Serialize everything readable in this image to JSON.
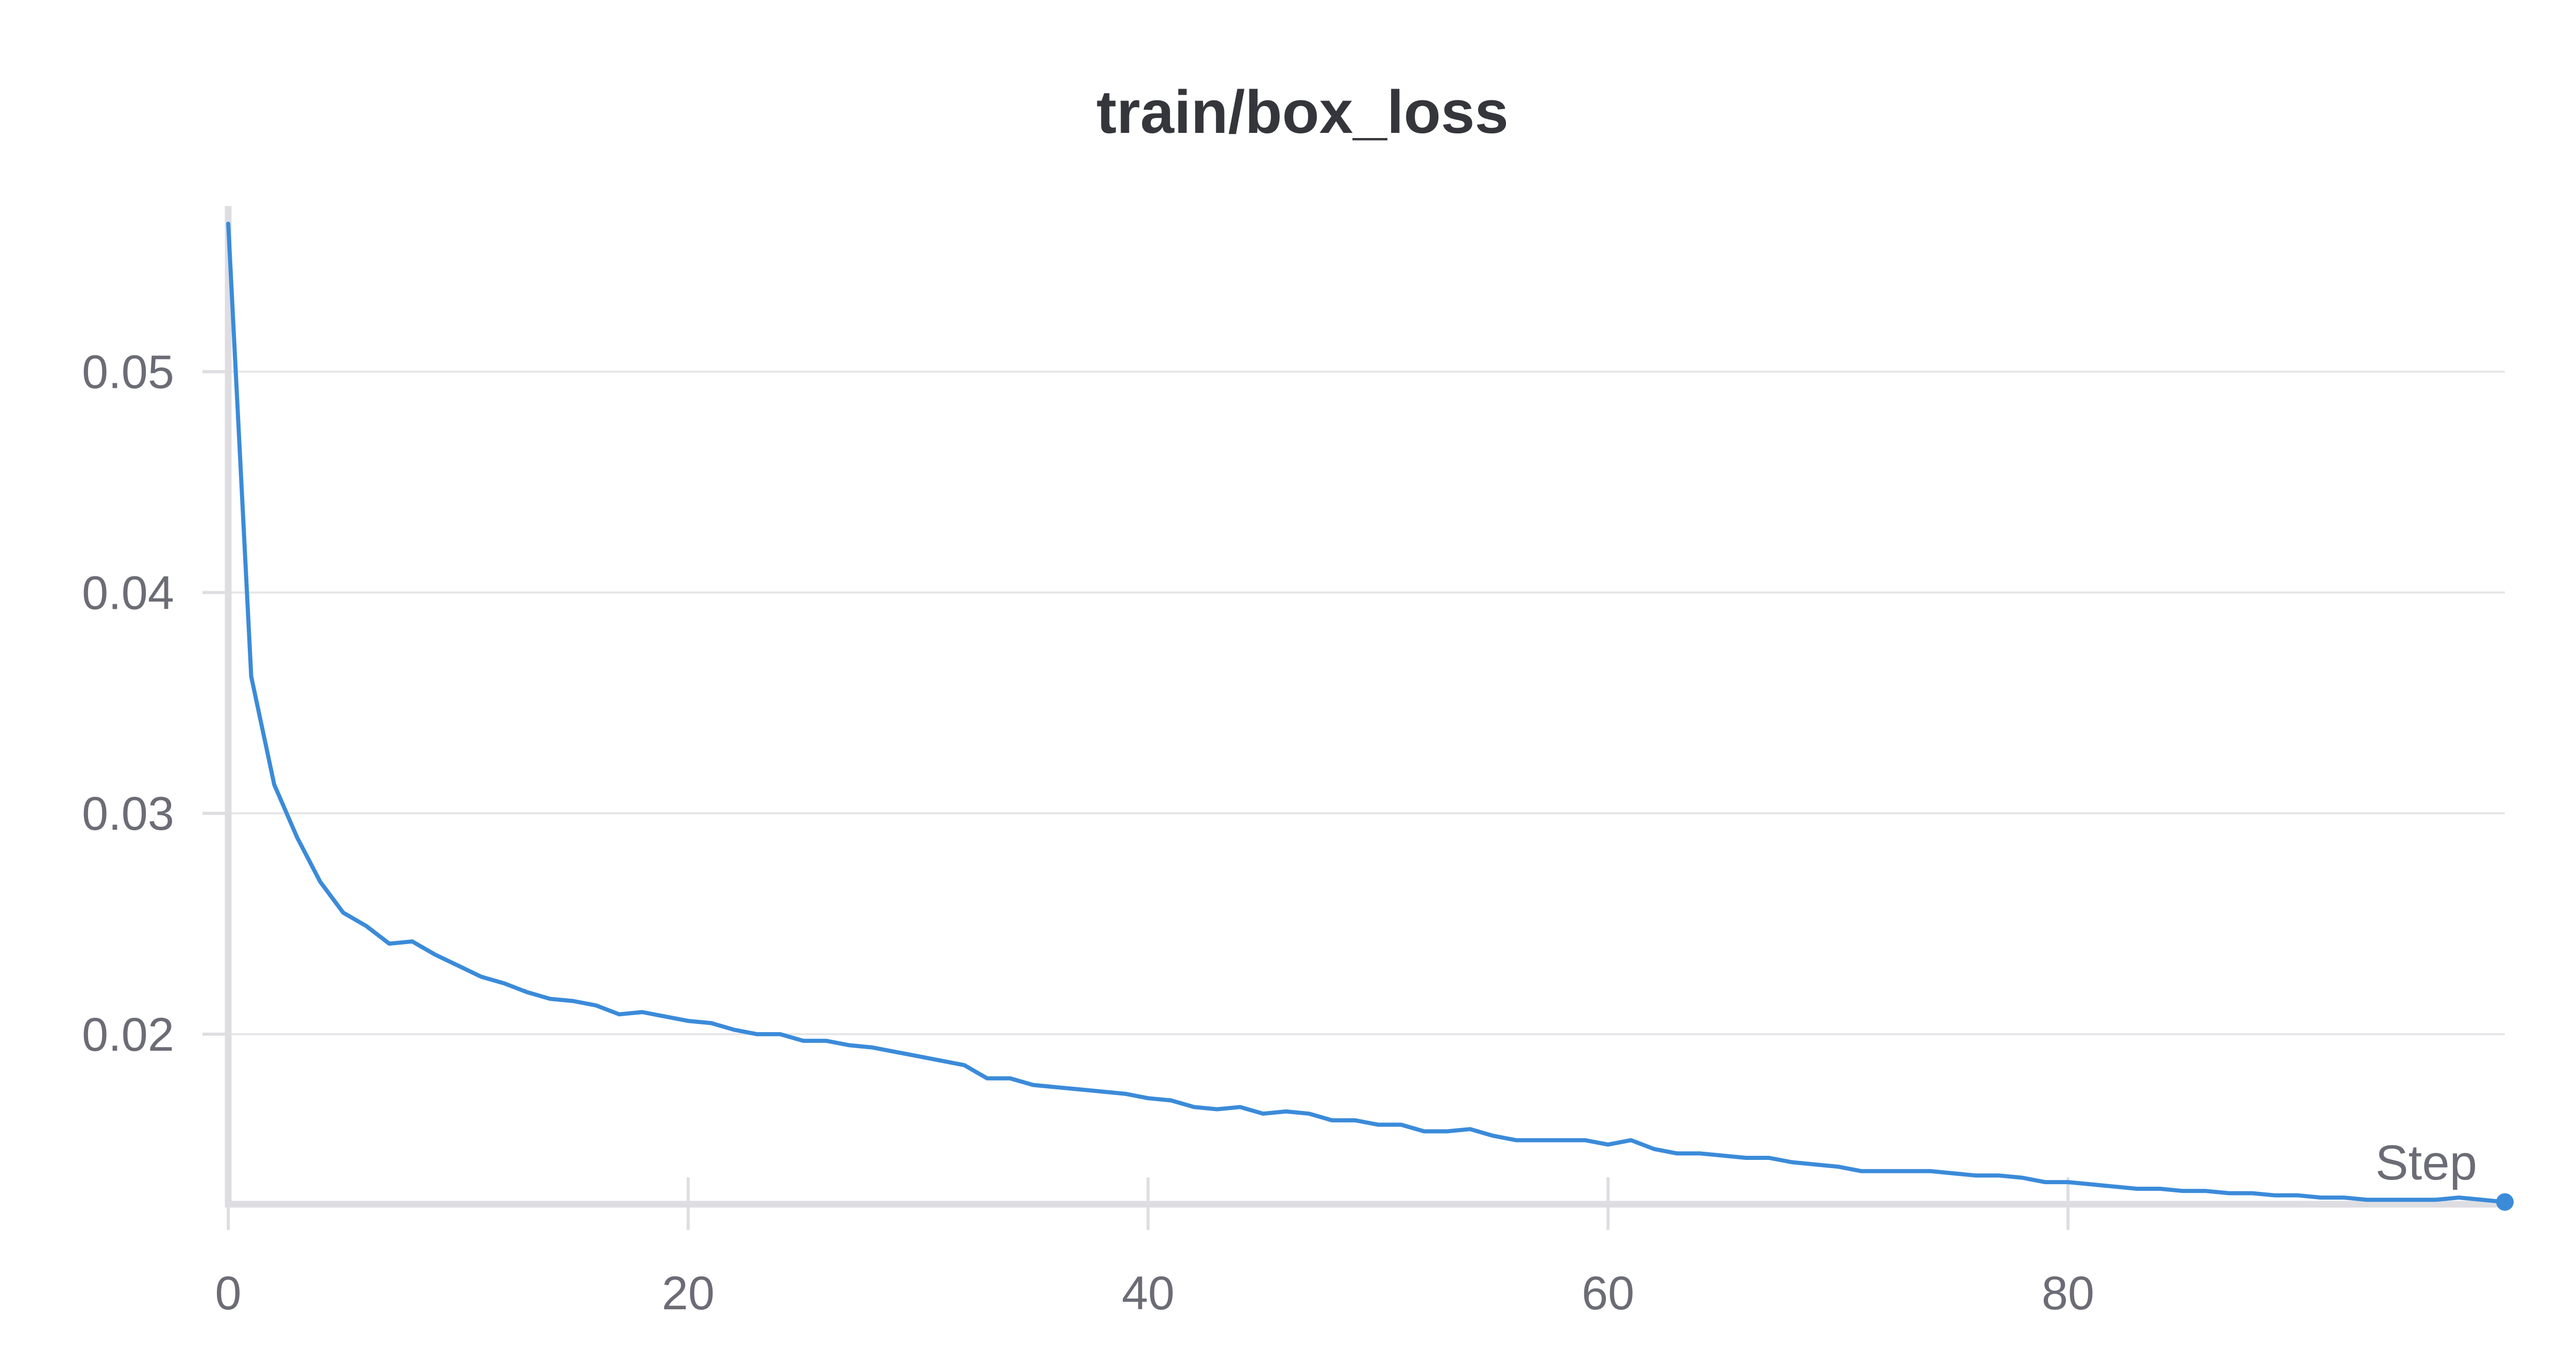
{
  "chart_data": {
    "type": "line",
    "title": "train/box_loss",
    "xlabel": "Step",
    "ylabel": "",
    "xlim": [
      0,
      99
    ],
    "ylim": [
      0.0123,
      0.0575
    ],
    "xticks": [
      "0",
      "20",
      "40",
      "60",
      "80"
    ],
    "xtick_values": [
      0,
      20,
      40,
      60,
      80
    ],
    "yticks": [
      "0.02",
      "0.03",
      "0.04",
      "0.05"
    ],
    "ytick_values": [
      0.02,
      0.03,
      0.04,
      0.05
    ],
    "grid": true,
    "legend": "none",
    "colors": {
      "line": "#3b8bd9",
      "grid": "#e6e6e9",
      "axis": "#dedee2",
      "text": "#6b6c75",
      "title": "#35363c"
    },
    "series": [
      {
        "x": [
          0,
          1,
          2,
          3,
          4,
          5,
          6,
          7,
          8,
          9,
          10,
          11,
          12,
          13,
          14,
          15,
          16,
          17,
          18,
          19,
          20,
          21,
          22,
          23,
          24,
          25,
          26,
          27,
          28,
          29,
          30,
          31,
          32,
          33,
          34,
          35,
          36,
          37,
          38,
          39,
          40,
          41,
          42,
          43,
          44,
          45,
          46,
          47,
          48,
          49,
          50,
          51,
          52,
          53,
          54,
          55,
          56,
          57,
          58,
          59,
          60,
          61,
          62,
          63,
          64,
          65,
          66,
          67,
          68,
          69,
          70,
          71,
          72,
          73,
          74,
          75,
          76,
          77,
          78,
          79,
          80,
          81,
          82,
          83,
          84,
          85,
          86,
          87,
          88,
          89,
          90,
          91,
          92,
          93,
          94,
          95,
          96,
          97,
          98,
          99
        ],
        "values": [
          0.0567,
          0.0362,
          0.0313,
          0.0289,
          0.0269,
          0.0255,
          0.0249,
          0.0241,
          0.0242,
          0.0236,
          0.0231,
          0.0226,
          0.0223,
          0.0219,
          0.0216,
          0.0215,
          0.0213,
          0.0209,
          0.021,
          0.0208,
          0.0206,
          0.0205,
          0.0202,
          0.02,
          0.02,
          0.0197,
          0.0197,
          0.0195,
          0.0194,
          0.0192,
          0.019,
          0.0188,
          0.0186,
          0.018,
          0.018,
          0.0177,
          0.0176,
          0.0175,
          0.0174,
          0.0173,
          0.0171,
          0.017,
          0.0167,
          0.0166,
          0.0167,
          0.0164,
          0.0165,
          0.0164,
          0.0161,
          0.0161,
          0.0159,
          0.0159,
          0.0156,
          0.0156,
          0.0157,
          0.0154,
          0.0152,
          0.0152,
          0.0152,
          0.0152,
          0.015,
          0.0152,
          0.0148,
          0.0146,
          0.0146,
          0.0145,
          0.0144,
          0.0144,
          0.0142,
          0.0141,
          0.014,
          0.0138,
          0.0138,
          0.0138,
          0.0138,
          0.0137,
          0.0136,
          0.0136,
          0.0135,
          0.0133,
          0.0133,
          0.0132,
          0.0131,
          0.013,
          0.013,
          0.0129,
          0.0129,
          0.0128,
          0.0128,
          0.0127,
          0.0127,
          0.0126,
          0.0126,
          0.0125,
          0.0125,
          0.0125,
          0.0125,
          0.0126,
          0.0125,
          0.0124
        ]
      }
    ]
  }
}
